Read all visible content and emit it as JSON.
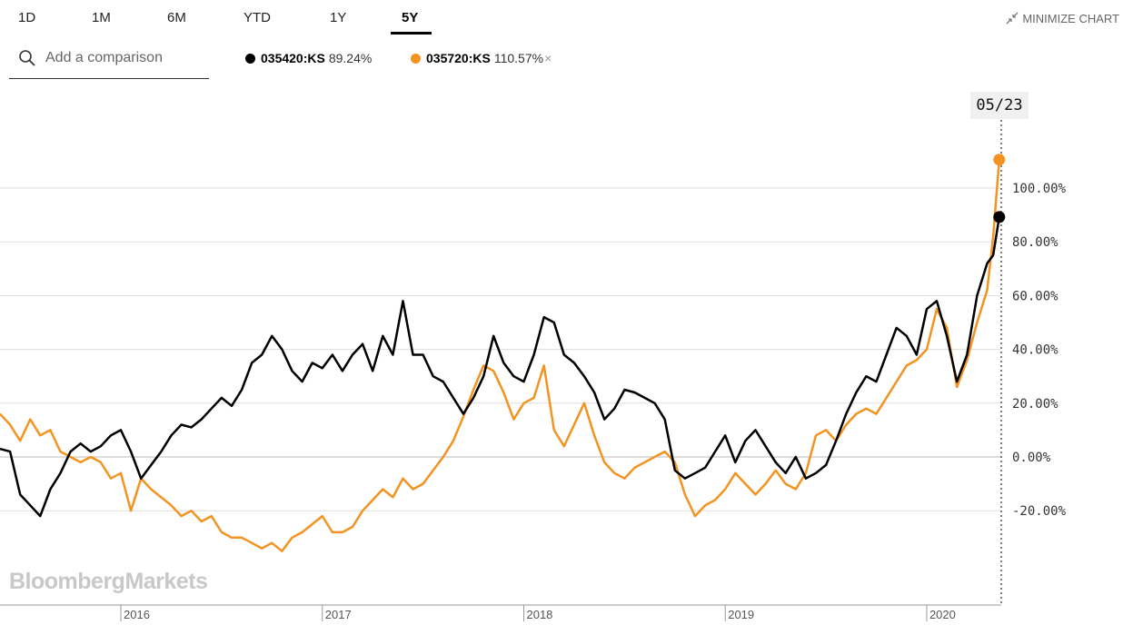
{
  "tabs": [
    {
      "label": "1D",
      "active": false
    },
    {
      "label": "1M",
      "active": false
    },
    {
      "label": "6M",
      "active": false
    },
    {
      "label": "YTD",
      "active": false
    },
    {
      "label": "1Y",
      "active": false
    },
    {
      "label": "5Y",
      "active": true
    }
  ],
  "minimize_label": "MINIMIZE CHART",
  "search": {
    "placeholder": "Add a comparison"
  },
  "legend": [
    {
      "symbol": "035420:KS",
      "value": "89.24%",
      "color": "#000000",
      "removable": false
    },
    {
      "symbol": "035720:KS",
      "value": "110.57%",
      "color": "#f39321",
      "removable": true,
      "remove_glyph": "×"
    }
  ],
  "hover_date": "05/23",
  "watermark": "BloombergMarkets",
  "chart_data": {
    "type": "line",
    "x_ticks": [
      "2016",
      "2017",
      "2018",
      "2019",
      "2020"
    ],
    "y_ticks": [
      "100.00%",
      "80.00%",
      "60.00%",
      "40.00%",
      "20.00%",
      "0.00%",
      "-20.00%"
    ],
    "y_tick_values": [
      100,
      80,
      60,
      40,
      20,
      0,
      -20
    ],
    "ylim": [
      -55,
      140
    ],
    "xlim": [
      2015.4,
      2020.37
    ],
    "grid": true,
    "series": [
      {
        "name": "035420:KS",
        "color": "#000000",
        "x": [
          2015.4,
          2015.45,
          2015.5,
          2015.55,
          2015.6,
          2015.65,
          2015.7,
          2015.75,
          2015.8,
          2015.85,
          2015.9,
          2015.95,
          2016.0,
          2016.05,
          2016.1,
          2016.15,
          2016.2,
          2016.25,
          2016.3,
          2016.35,
          2016.4,
          2016.45,
          2016.5,
          2016.55,
          2016.6,
          2016.65,
          2016.7,
          2016.75,
          2016.8,
          2016.85,
          2016.9,
          2016.95,
          2017.0,
          2017.05,
          2017.1,
          2017.15,
          2017.2,
          2017.25,
          2017.3,
          2017.35,
          2017.4,
          2017.45,
          2017.5,
          2017.55,
          2017.6,
          2017.65,
          2017.7,
          2017.75,
          2017.8,
          2017.85,
          2017.9,
          2017.95,
          2018.0,
          2018.05,
          2018.1,
          2018.15,
          2018.2,
          2018.25,
          2018.3,
          2018.35,
          2018.4,
          2018.45,
          2018.5,
          2018.55,
          2018.6,
          2018.65,
          2018.7,
          2018.75,
          2018.8,
          2018.85,
          2018.9,
          2018.95,
          2019.0,
          2019.05,
          2019.1,
          2019.15,
          2019.2,
          2019.25,
          2019.3,
          2019.35,
          2019.4,
          2019.45,
          2019.5,
          2019.55,
          2019.6,
          2019.65,
          2019.7,
          2019.75,
          2019.8,
          2019.85,
          2019.9,
          2019.95,
          2020.0,
          2020.05,
          2020.1,
          2020.15,
          2020.2,
          2020.25,
          2020.3,
          2020.33,
          2020.36
        ],
        "y": [
          3,
          2,
          -14,
          -18,
          -22,
          -12,
          -6,
          2,
          5,
          2,
          4,
          8,
          10,
          2,
          -8,
          -3,
          2,
          8,
          12,
          11,
          14,
          18,
          22,
          19,
          25,
          35,
          38,
          45,
          40,
          32,
          28,
          35,
          33,
          38,
          32,
          38,
          42,
          32,
          45,
          38,
          58,
          38,
          38,
          30,
          28,
          22,
          16,
          22,
          30,
          45,
          35,
          30,
          28,
          38,
          52,
          50,
          38,
          35,
          30,
          24,
          14,
          18,
          25,
          24,
          22,
          20,
          14,
          -5,
          -8,
          -6,
          -4,
          2,
          8,
          -2,
          6,
          10,
          4,
          -2,
          -6,
          0,
          -8,
          -6,
          -3,
          6,
          16,
          24,
          30,
          28,
          38,
          48,
          45,
          38,
          55,
          58,
          45,
          28,
          38,
          60,
          72,
          75,
          89.24
        ]
      },
      {
        "name": "035720:KS",
        "color": "#f39321",
        "x": [
          2015.4,
          2015.45,
          2015.5,
          2015.55,
          2015.6,
          2015.65,
          2015.7,
          2015.75,
          2015.8,
          2015.85,
          2015.9,
          2015.95,
          2016.0,
          2016.05,
          2016.1,
          2016.15,
          2016.2,
          2016.25,
          2016.3,
          2016.35,
          2016.4,
          2016.45,
          2016.5,
          2016.55,
          2016.6,
          2016.65,
          2016.7,
          2016.75,
          2016.8,
          2016.85,
          2016.9,
          2016.95,
          2017.0,
          2017.05,
          2017.1,
          2017.15,
          2017.2,
          2017.25,
          2017.3,
          2017.35,
          2017.4,
          2017.45,
          2017.5,
          2017.55,
          2017.6,
          2017.65,
          2017.7,
          2017.75,
          2017.8,
          2017.85,
          2017.9,
          2017.95,
          2018.0,
          2018.05,
          2018.1,
          2018.15,
          2018.2,
          2018.25,
          2018.3,
          2018.35,
          2018.4,
          2018.45,
          2018.5,
          2018.55,
          2018.6,
          2018.65,
          2018.7,
          2018.75,
          2018.8,
          2018.85,
          2018.9,
          2018.95,
          2019.0,
          2019.05,
          2019.1,
          2019.15,
          2019.2,
          2019.25,
          2019.3,
          2019.35,
          2019.4,
          2019.45,
          2019.5,
          2019.55,
          2019.6,
          2019.65,
          2019.7,
          2019.75,
          2019.8,
          2019.85,
          2019.9,
          2019.95,
          2020.0,
          2020.05,
          2020.1,
          2020.15,
          2020.2,
          2020.25,
          2020.3,
          2020.33,
          2020.36
        ],
        "y": [
          16,
          12,
          6,
          14,
          8,
          10,
          2,
          0,
          -2,
          0,
          -2,
          -8,
          -6,
          -20,
          -8,
          -12,
          -15,
          -18,
          -22,
          -20,
          -24,
          -22,
          -28,
          -30,
          -30,
          -32,
          -34,
          -32,
          -35,
          -30,
          -28,
          -25,
          -22,
          -28,
          -28,
          -26,
          -20,
          -16,
          -12,
          -15,
          -8,
          -12,
          -10,
          -5,
          0,
          6,
          15,
          25,
          34,
          32,
          24,
          14,
          20,
          22,
          34,
          10,
          4,
          12,
          20,
          8,
          -2,
          -6,
          -8,
          -4,
          -2,
          0,
          2,
          -2,
          -14,
          -22,
          -18,
          -16,
          -12,
          -6,
          -10,
          -14,
          -10,
          -5,
          -10,
          -12,
          -6,
          8,
          10,
          6,
          12,
          16,
          18,
          16,
          22,
          28,
          34,
          36,
          40,
          55,
          48,
          26,
          36,
          50,
          62,
          82,
          110.57
        ]
      }
    ]
  }
}
